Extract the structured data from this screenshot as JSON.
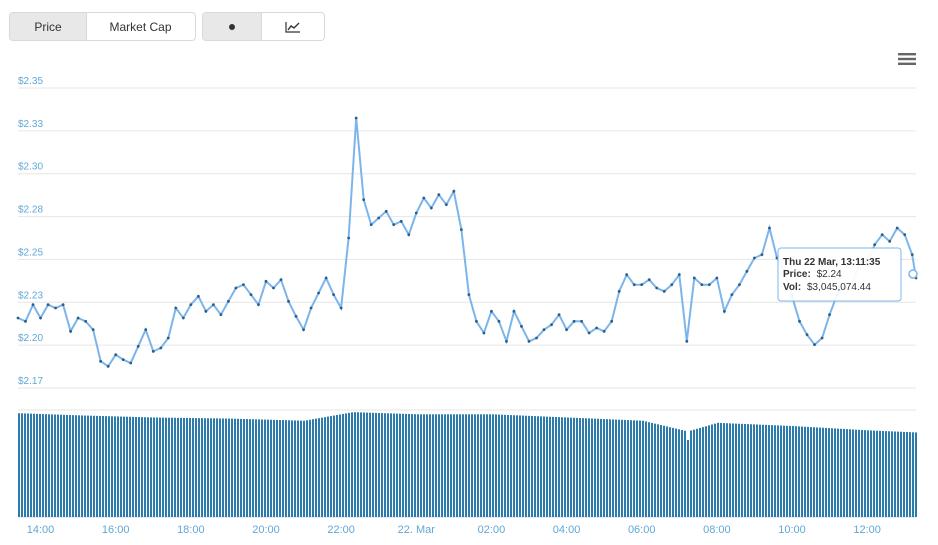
{
  "toolbar": {
    "price_label": "Price",
    "market_cap_label": "Market Cap",
    "scatter_icon": "dot-icon",
    "line_icon": "line-chart-icon",
    "menu_icon": "hamburger-menu-icon"
  },
  "colors": {
    "line": "#7cb5ec",
    "axis_label": "#5fa8d8",
    "volume_bar": "#2b7cad",
    "grid": "#e6e6e6",
    "tooltip_border": "#7cb5ec"
  },
  "tooltip": {
    "date": "Thu 22 Mar, 13:11:35",
    "price_label": "Price:",
    "price_value": "$2.24",
    "vol_label": "Vol:",
    "vol_value": "$3,045,074.44"
  },
  "chart_data": {
    "type": "line",
    "ylim": [
      2.17,
      2.35
    ],
    "yticks": [
      "$2.35",
      "$2.33",
      "$2.30",
      "$2.28",
      "$2.25",
      "$2.23",
      "$2.20",
      "$2.17"
    ],
    "xlim": [
      13.4,
      37.3
    ],
    "xticks": [
      "14:00",
      "16:00",
      "18:00",
      "20:00",
      "22:00",
      "22. Mar",
      "02:00",
      "04:00",
      "06:00",
      "08:00",
      "10:00",
      "12:00"
    ],
    "price_series": [
      [
        13.4,
        2.212
      ],
      [
        13.6,
        2.21
      ],
      [
        13.8,
        2.22
      ],
      [
        14.0,
        2.212
      ],
      [
        14.2,
        2.22
      ],
      [
        14.4,
        2.218
      ],
      [
        14.6,
        2.22
      ],
      [
        14.8,
        2.204
      ],
      [
        15.0,
        2.212
      ],
      [
        15.2,
        2.21
      ],
      [
        15.4,
        2.205
      ],
      [
        15.6,
        2.186
      ],
      [
        15.8,
        2.183
      ],
      [
        16.0,
        2.19
      ],
      [
        16.2,
        2.187
      ],
      [
        16.4,
        2.185
      ],
      [
        16.6,
        2.195
      ],
      [
        16.8,
        2.205
      ],
      [
        17.0,
        2.192
      ],
      [
        17.2,
        2.194
      ],
      [
        17.4,
        2.2
      ],
      [
        17.6,
        2.218
      ],
      [
        17.8,
        2.212
      ],
      [
        18.0,
        2.22
      ],
      [
        18.2,
        2.225
      ],
      [
        18.4,
        2.216
      ],
      [
        18.6,
        2.22
      ],
      [
        18.8,
        2.214
      ],
      [
        19.0,
        2.222
      ],
      [
        19.2,
        2.23
      ],
      [
        19.4,
        2.232
      ],
      [
        19.6,
        2.226
      ],
      [
        19.8,
        2.22
      ],
      [
        20.0,
        2.234
      ],
      [
        20.2,
        2.23
      ],
      [
        20.4,
        2.235
      ],
      [
        20.6,
        2.222
      ],
      [
        20.8,
        2.213
      ],
      [
        21.0,
        2.205
      ],
      [
        21.2,
        2.218
      ],
      [
        21.4,
        2.227
      ],
      [
        21.6,
        2.236
      ],
      [
        21.8,
        2.226
      ],
      [
        22.0,
        2.218
      ],
      [
        22.2,
        2.26
      ],
      [
        22.4,
        2.332
      ],
      [
        22.6,
        2.283
      ],
      [
        22.8,
        2.268
      ],
      [
        23.0,
        2.272
      ],
      [
        23.2,
        2.276
      ],
      [
        23.4,
        2.268
      ],
      [
        23.6,
        2.27
      ],
      [
        23.8,
        2.262
      ],
      [
        24.0,
        2.275
      ],
      [
        24.2,
        2.284
      ],
      [
        24.4,
        2.278
      ],
      [
        24.6,
        2.286
      ],
      [
        24.8,
        2.28
      ],
      [
        25.0,
        2.288
      ],
      [
        25.2,
        2.265
      ],
      [
        25.4,
        2.226
      ],
      [
        25.6,
        2.21
      ],
      [
        25.8,
        2.203
      ],
      [
        26.0,
        2.216
      ],
      [
        26.2,
        2.21
      ],
      [
        26.4,
        2.198
      ],
      [
        26.6,
        2.216
      ],
      [
        26.8,
        2.207
      ],
      [
        27.0,
        2.198
      ],
      [
        27.2,
        2.2
      ],
      [
        27.4,
        2.205
      ],
      [
        27.6,
        2.208
      ],
      [
        27.8,
        2.214
      ],
      [
        28.0,
        2.205
      ],
      [
        28.2,
        2.21
      ],
      [
        28.4,
        2.21
      ],
      [
        28.6,
        2.203
      ],
      [
        28.8,
        2.206
      ],
      [
        29.0,
        2.204
      ],
      [
        29.2,
        2.21
      ],
      [
        29.4,
        2.228
      ],
      [
        29.6,
        2.238
      ],
      [
        29.8,
        2.232
      ],
      [
        30.0,
        2.232
      ],
      [
        30.2,
        2.235
      ],
      [
        30.4,
        2.23
      ],
      [
        30.6,
        2.228
      ],
      [
        30.8,
        2.232
      ],
      [
        31.0,
        2.238
      ],
      [
        31.2,
        2.198
      ],
      [
        31.4,
        2.236
      ],
      [
        31.6,
        2.232
      ],
      [
        31.8,
        2.232
      ],
      [
        32.0,
        2.236
      ],
      [
        32.2,
        2.216
      ],
      [
        32.4,
        2.226
      ],
      [
        32.6,
        2.232
      ],
      [
        32.8,
        2.24
      ],
      [
        33.0,
        2.248
      ],
      [
        33.2,
        2.25
      ],
      [
        33.4,
        2.266
      ],
      [
        33.6,
        2.248
      ],
      [
        33.8,
        2.24
      ],
      [
        34.0,
        2.225
      ],
      [
        34.2,
        2.21
      ],
      [
        34.4,
        2.202
      ],
      [
        34.6,
        2.196
      ],
      [
        34.8,
        2.2
      ],
      [
        35.0,
        2.214
      ],
      [
        35.2,
        2.226
      ],
      [
        35.4,
        2.23
      ],
      [
        35.6,
        2.232
      ],
      [
        35.8,
        2.245
      ],
      [
        36.0,
        2.246
      ],
      [
        36.2,
        2.256
      ],
      [
        36.4,
        2.262
      ],
      [
        36.6,
        2.258
      ],
      [
        36.8,
        2.266
      ],
      [
        37.0,
        2.262
      ],
      [
        37.2,
        2.25
      ],
      [
        37.3,
        2.236
      ]
    ],
    "volume_series_label": "Vol",
    "volume_ylim": [
      0,
      100
    ],
    "volume_levels": [
      [
        13.4,
        97
      ],
      [
        15.0,
        95
      ],
      [
        17.0,
        93
      ],
      [
        19.0,
        92
      ],
      [
        21.0,
        90
      ],
      [
        22.3,
        98
      ],
      [
        24.0,
        96
      ],
      [
        26.0,
        96
      ],
      [
        28.0,
        93
      ],
      [
        30.0,
        90
      ],
      [
        31.2,
        80
      ],
      [
        32.0,
        88
      ],
      [
        34.0,
        85
      ],
      [
        36.0,
        81
      ],
      [
        37.3,
        79
      ]
    ]
  }
}
